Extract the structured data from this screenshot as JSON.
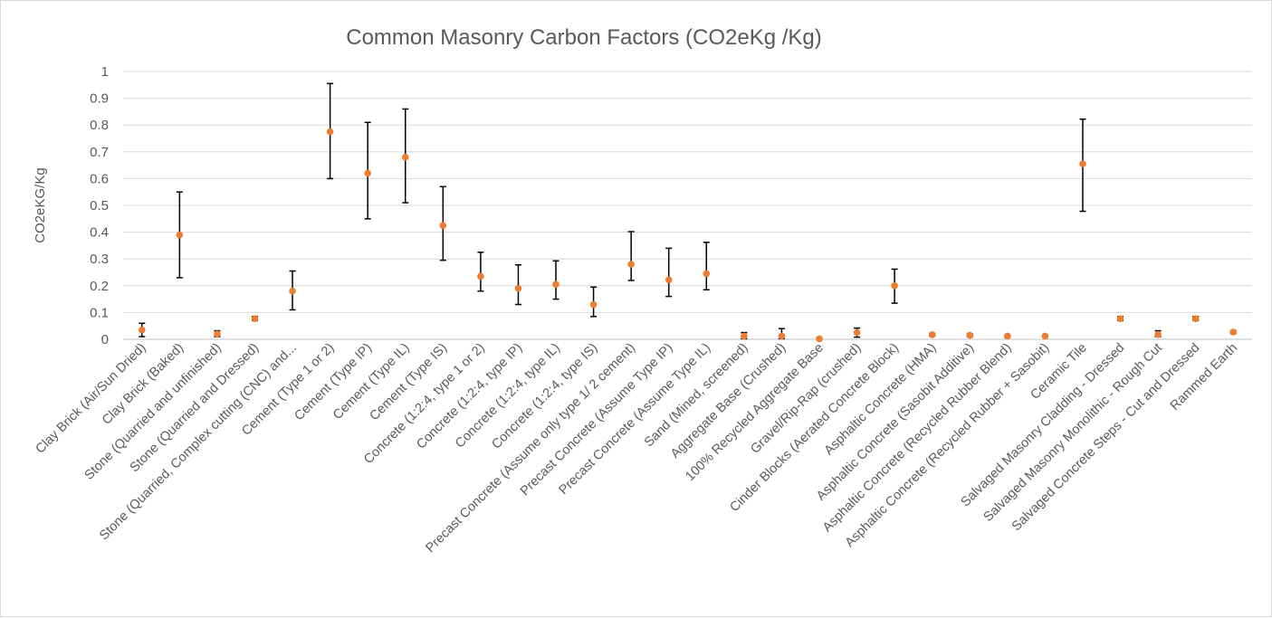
{
  "chart_data": {
    "type": "scatter",
    "title": "Common Masonry Carbon Factors (CO2eKg /Kg)",
    "xlabel": "",
    "ylabel": "CO2eKG/Kg",
    "ylim": [
      0,
      1
    ],
    "yticks": [
      0,
      0.1,
      0.2,
      0.3,
      0.4,
      0.5,
      0.6,
      0.7,
      0.8,
      0.9,
      1
    ],
    "ytick_labels": [
      "0",
      "0.1",
      "0.2",
      "0.3",
      "0.4",
      "0.5",
      "0.6",
      "0.7",
      "0.8",
      "0.9",
      "1"
    ],
    "grid": true,
    "legend": "none",
    "marker_color": "#ED7D31",
    "errorbar_color": "#000000",
    "categories": [
      "Clay Brick (Air/Sun Dried)",
      "Clay Brick (Baked)",
      "Stone (Quarried and unfinished)",
      "Stone (Quarried and Dressed)",
      "Stone (Quarried, Complex cutting (CNC) and...",
      "Cement (Type 1 or 2)",
      "Cement (Type IP)",
      "Cement (Type IL)",
      "Cement (Type IS)",
      "Concrete (1:2:4, type 1 or 2)",
      "Concrete (1:2:4, type IP)",
      "Concrete (1:2:4, type IL)",
      "Concrete (1:2:4, type IS)",
      "Precast Concrete (Assume only type 1/ 2 cement)",
      "Precast Concrete (Assume Type IP)",
      "Precast Concrete (Assume Type IL)",
      "Sand (Mined, screened)",
      "Aggregate Base (Crushed)",
      "100% Recycled Aggregate Base",
      "Gravel/Rip-Rap (crushed)",
      "Cinder Blocks (Aerated Concrete Block)",
      "Asphaltic Concrete (HMA)",
      "Asphaltic Concrete (Sasobit Additive)",
      "Asphaltic Concrete (Recycled Rubber Blend)",
      "Asphaltic Concrete (Recycled Rubber + Sasobit)",
      "Ceramic Tile",
      "Salvaged Masonry Cladding - Dressed",
      "Salvaged Masonry Monolithic - Rough Cut",
      "Salvaged Concrete Steps - Cut and Dressed",
      "Rammed Earth"
    ],
    "values": [
      0.035,
      0.39,
      0.02,
      0.077,
      0.18,
      0.775,
      0.62,
      0.68,
      0.425,
      0.235,
      0.19,
      0.205,
      0.13,
      0.28,
      0.222,
      0.245,
      0.012,
      0.012,
      0.002,
      0.025,
      0.2,
      0.017,
      0.015,
      0.012,
      0.012,
      0.655,
      0.077,
      0.018,
      0.077,
      0.027
    ],
    "error_low": [
      0.01,
      0.23,
      0.01,
      0.07,
      0.11,
      0.6,
      0.45,
      0.51,
      0.295,
      0.18,
      0.13,
      0.15,
      0.085,
      0.22,
      0.16,
      0.185,
      0.002,
      0.002,
      0.0,
      0.008,
      0.135,
      0.012,
      0.01,
      0.008,
      0.008,
      0.478,
      0.07,
      0.01,
      0.07,
      0.022
    ],
    "error_high": [
      0.06,
      0.55,
      0.032,
      0.085,
      0.255,
      0.955,
      0.81,
      0.86,
      0.57,
      0.325,
      0.278,
      0.293,
      0.195,
      0.402,
      0.34,
      0.362,
      0.025,
      0.04,
      0.006,
      0.042,
      0.262,
      0.022,
      0.02,
      0.016,
      0.016,
      0.822,
      0.085,
      0.032,
      0.085,
      0.032
    ]
  }
}
